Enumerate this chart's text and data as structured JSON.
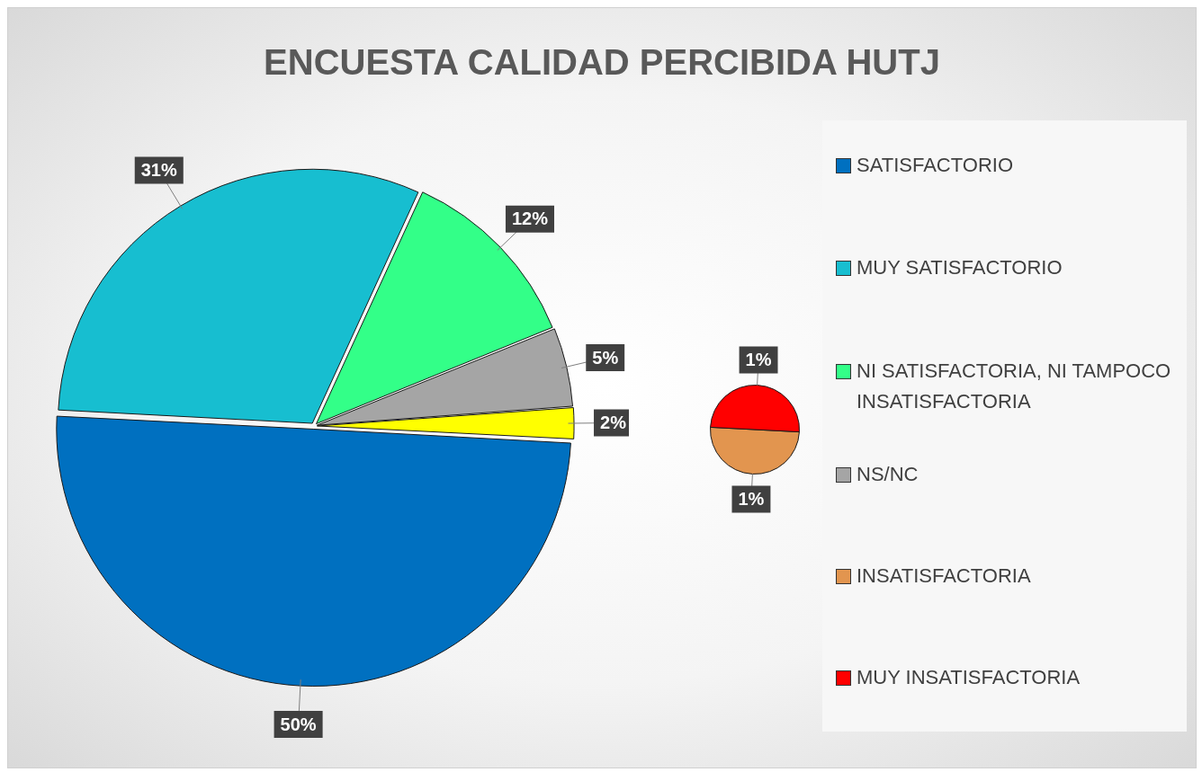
{
  "chart_data": [
    {
      "type": "pie",
      "title": "ENCUESTA CALIDAD PERCIBIDA HUTJ",
      "categories": [
        "SATISFACTORIO",
        "MUY SATISFACTORIO",
        "NI SATISFACTORIA, NI TAMPOCO INSATISFACTORIA",
        "NS/NC",
        null
      ],
      "values": [
        50,
        31,
        12,
        5,
        2
      ],
      "colors": [
        "#0070c0",
        "#17bed0",
        "#33ff88",
        "#a5a5a5",
        "#ffff00"
      ],
      "value_labels": [
        "50%",
        "31%",
        "12%",
        "5%",
        "2%"
      ],
      "legend": "right"
    },
    {
      "type": "pie",
      "categories": [
        "INSATISFACTORIA",
        "MUY INSATISFACTORIA"
      ],
      "values": [
        1,
        1
      ],
      "colors": [
        "#e2954f",
        "#ff0000"
      ],
      "value_labels": [
        "1%",
        "1%"
      ],
      "legend": "right"
    }
  ]
}
